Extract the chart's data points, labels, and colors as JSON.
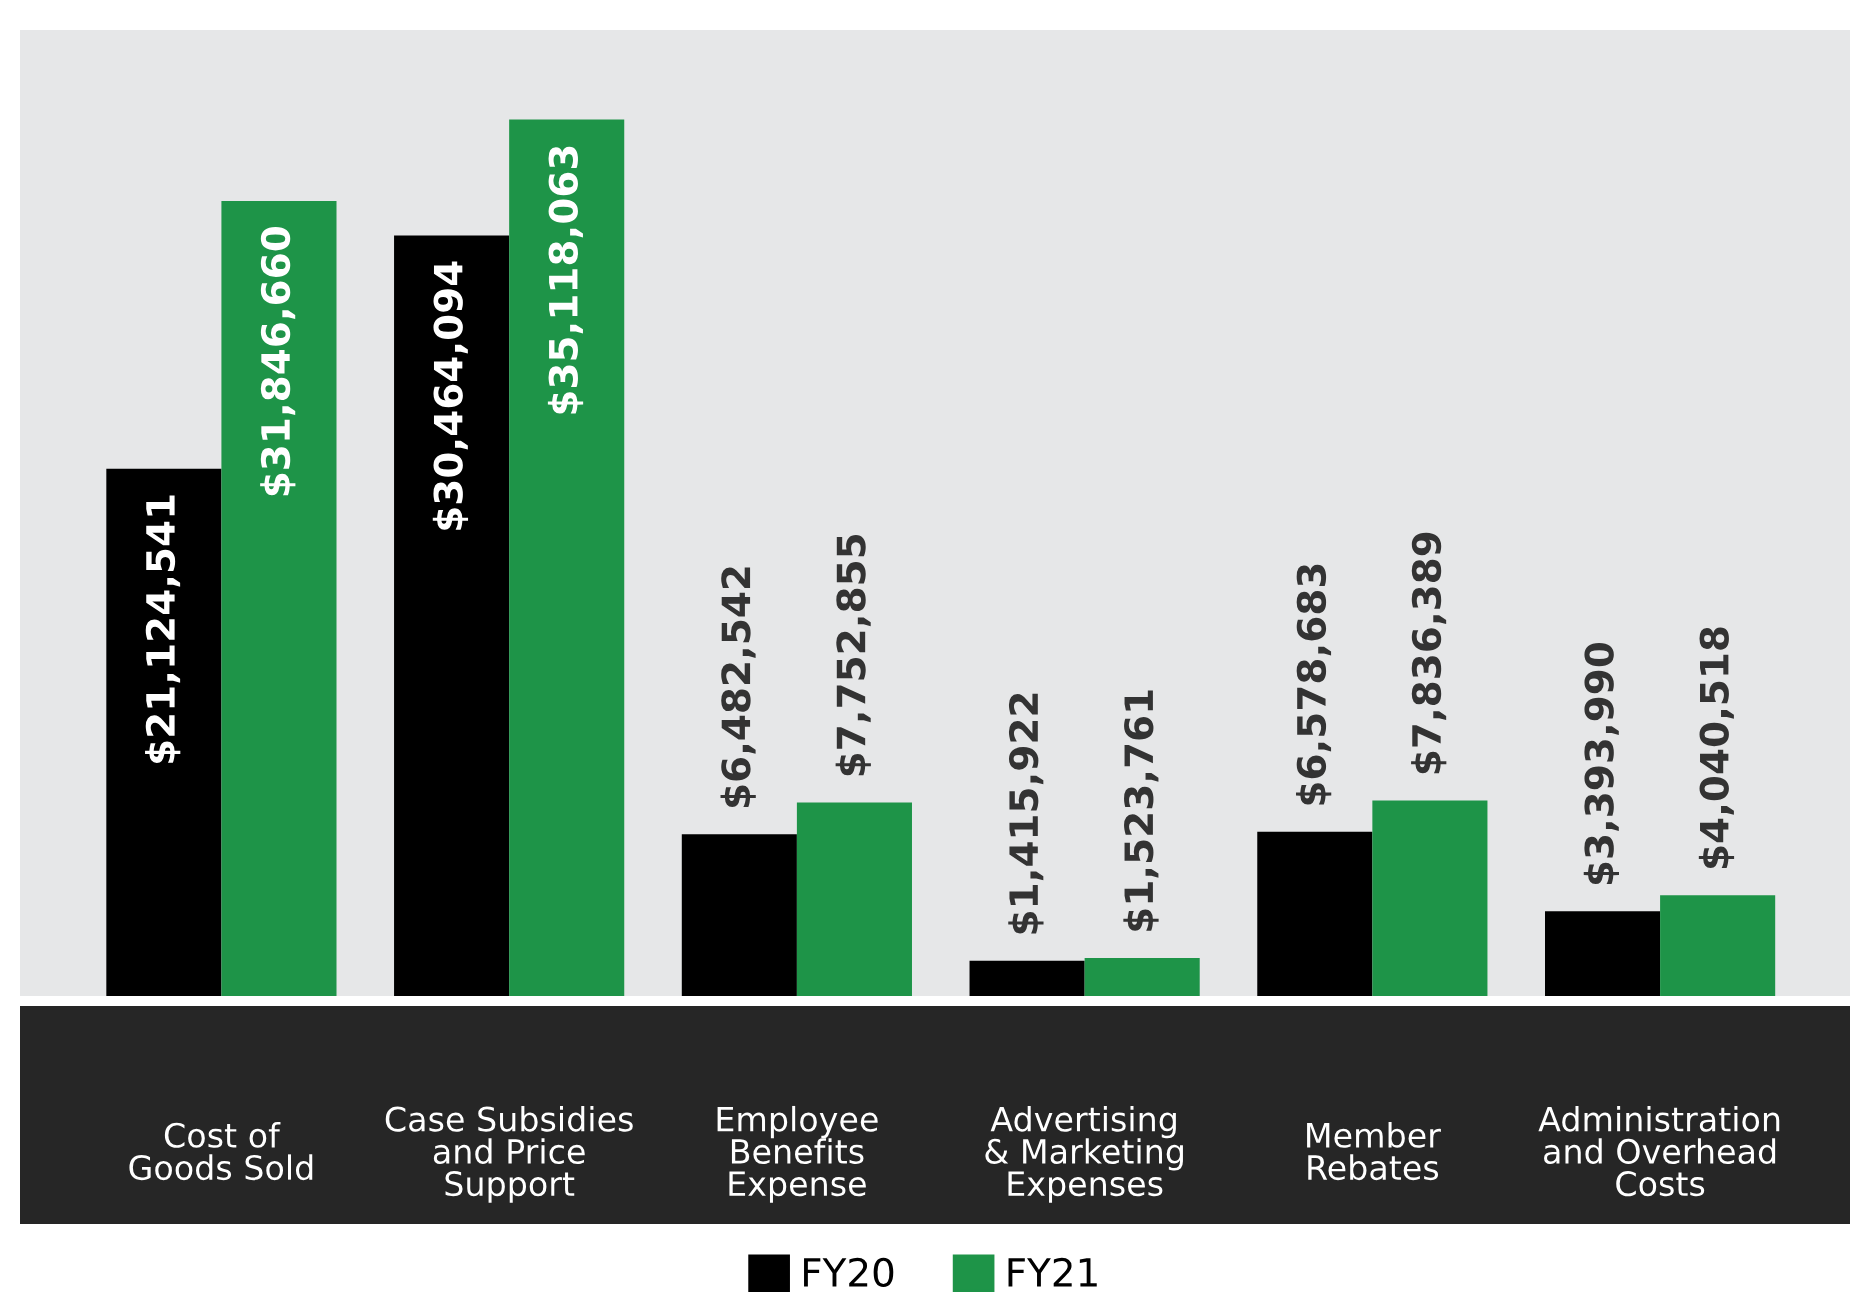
{
  "chart_data": {
    "type": "bar",
    "categories": [
      "Cost of\nGoods Sold",
      "Case Subsidies\nand Price\nSupport",
      "Employee\nBenefits\nExpense",
      "Advertising\n& Marketing\nExpenses",
      "Member\nRebates",
      "Administration\nand Overhead\nCosts"
    ],
    "series": [
      {
        "name": "FY20",
        "color": "#000000",
        "values": [
          21124541,
          30464094,
          6482542,
          1415922,
          6578683,
          3393990
        ],
        "value_labels": [
          "$21,124,541",
          "$30,464,094",
          "$6,482,542",
          "$1,415,922",
          "$6,578,683",
          "$3,393,990"
        ]
      },
      {
        "name": "FY21",
        "color": "#1e9448",
        "values": [
          31846660,
          35118063,
          7752855,
          1523761,
          7836389,
          4040518
        ],
        "value_labels": [
          "$31,846,660",
          "$35,118,063",
          "$7,752,855",
          "$1,523,761",
          "$7,836,389",
          "$4,040,518"
        ]
      }
    ],
    "ylim": [
      0,
      38700000
    ],
    "legend": "bottom",
    "grid": false
  }
}
